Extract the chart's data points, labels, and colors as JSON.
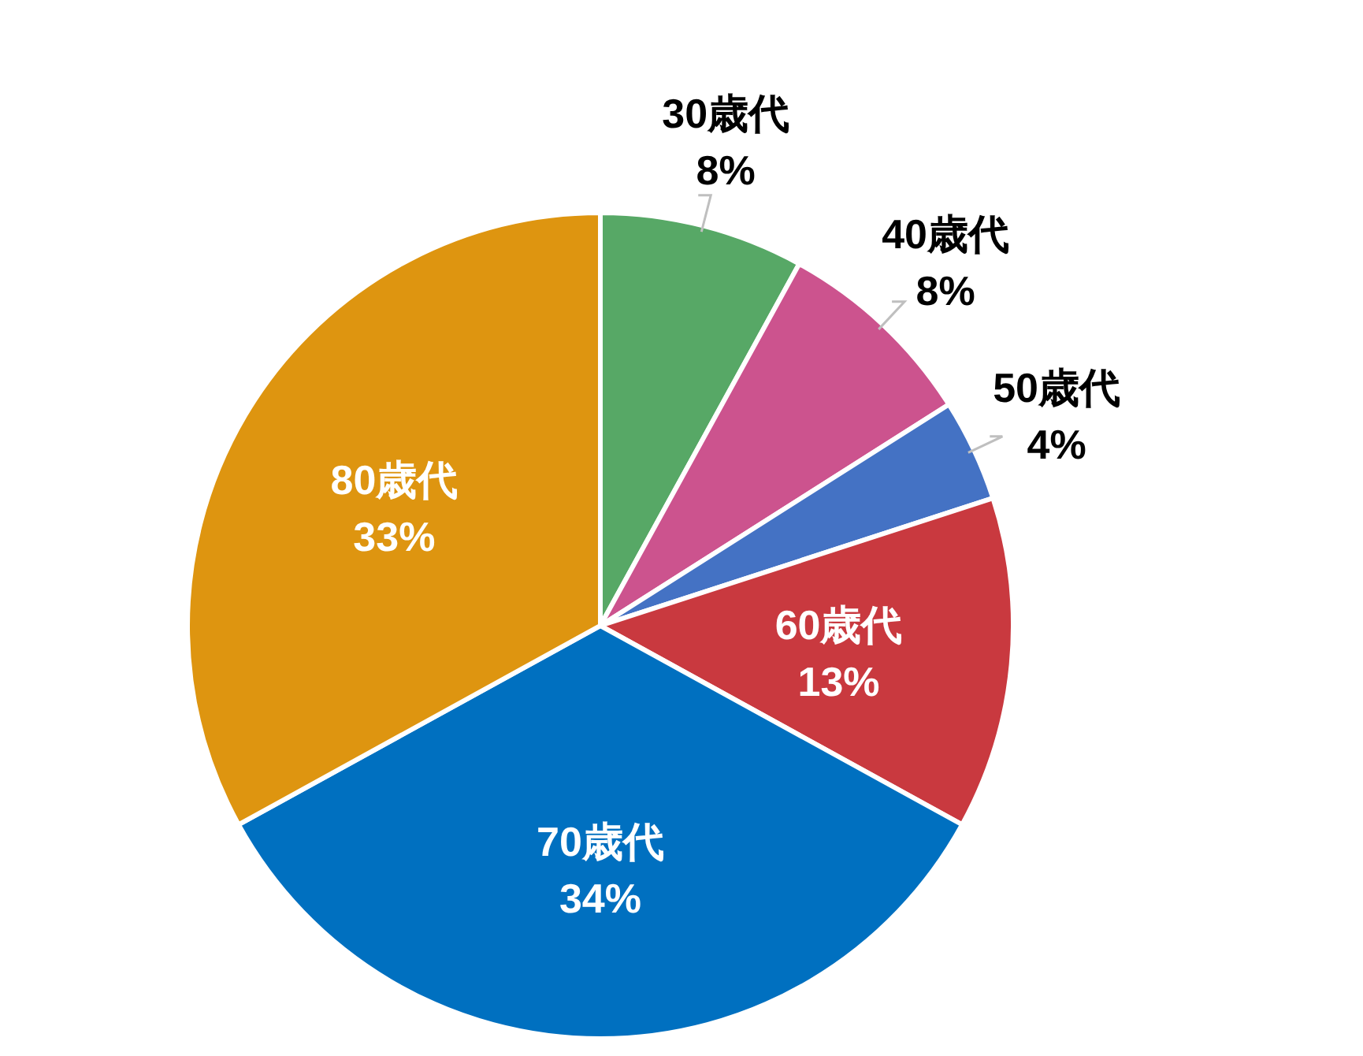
{
  "chart_data": {
    "type": "pie",
    "categories": [
      "30歳代",
      "40歳代",
      "50歳代",
      "60歳代",
      "70歳代",
      "80歳代"
    ],
    "values": [
      8,
      8,
      4,
      13,
      34,
      33
    ],
    "colors": [
      "#57a866",
      "#cc538e",
      "#4472c4",
      "#c9393f",
      "#0070c0",
      "#de9510"
    ],
    "value_labels": [
      "8%",
      "8%",
      "4%",
      "13%",
      "34%",
      "33%"
    ],
    "legend": false
  }
}
